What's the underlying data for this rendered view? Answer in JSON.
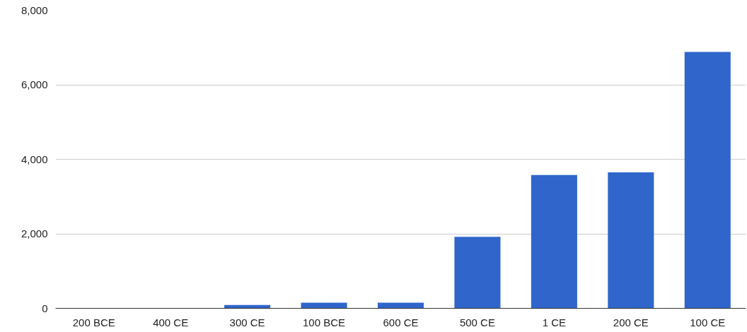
{
  "chart_data": {
    "type": "bar",
    "categories": [
      "200 BCE",
      "400 CE",
      "300 CE",
      "100 BCE",
      "600 CE",
      "500 CE",
      "1 CE",
      "200 CE",
      "100 CE"
    ],
    "values": [
      0,
      0,
      90,
      150,
      150,
      1920,
      3580,
      3650,
      6880
    ],
    "color": "#3066cb",
    "ylim": [
      0,
      8000
    ],
    "yticks": [
      {
        "value": 0,
        "label": "0"
      },
      {
        "value": 2000,
        "label": "2,000"
      },
      {
        "value": 4000,
        "label": "4,000"
      },
      {
        "value": 6000,
        "label": "6,000"
      },
      {
        "value": 8000,
        "label": "8,000"
      }
    ],
    "grid": "y"
  }
}
